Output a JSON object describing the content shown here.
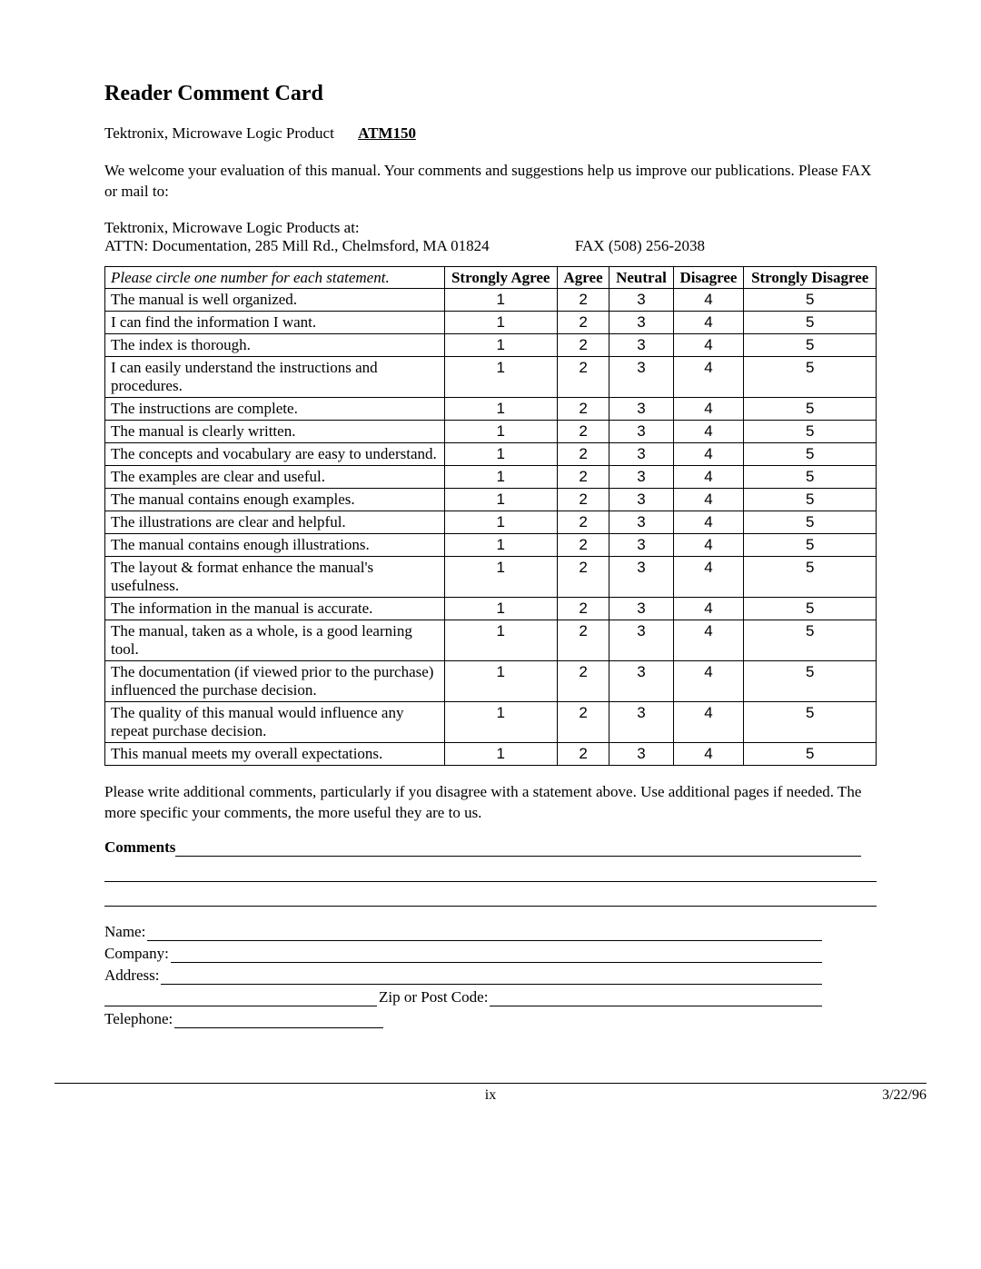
{
  "title": "Reader Comment Card",
  "company_product_line": "Tektronix, Microwave Logic Product",
  "product_code": "ATM150",
  "intro": "We welcome your evaluation of this manual. Your comments and suggestions help us improve our publications. Please FAX or mail to:",
  "address_line1": "Tektronix, Microwave Logic Products at:",
  "address_line2": "ATTN: Documentation, 285 Mill Rd., Chelmsford, MA 01824",
  "fax": "FAX (508) 256-2038",
  "table": {
    "header_instruction": "Please circle one number for each statement.",
    "columns": [
      "Strongly Agree",
      "Agree",
      "Neutral",
      "Disagree",
      "Strongly Disagree"
    ],
    "rating_values": [
      "1",
      "2",
      "3",
      "4",
      "5"
    ],
    "rows": [
      "The manual is well organized.",
      "I can find the information I want.",
      "The index is thorough.",
      "I can easily understand the instructions and procedures.",
      "The instructions are complete.",
      "The manual is clearly written.",
      "The concepts and vocabulary are easy to understand.",
      "The examples are clear and useful.",
      "The manual contains enough examples.",
      "The illustrations are clear and helpful.",
      "The manual contains enough illustrations.",
      "The layout & format enhance the manual's usefulness.",
      "The information in the manual is accurate.",
      "The manual, taken as a whole, is a good learning tool.",
      "The documentation (if viewed prior to the purchase) influenced the purchase decision.",
      "The quality of this manual would influence any repeat purchase decision.",
      "This manual meets my overall expectations."
    ]
  },
  "after_table": "Please write additional comments, particularly if you disagree with a statement above. Use additional pages if needed. The more specific your comments, the more useful they are to us.",
  "comments_label": "Comments",
  "fields": {
    "name": "Name:",
    "company": "Company:",
    "address": "Address:",
    "zip": "Zip or Post Code:",
    "telephone": "Telephone:"
  },
  "footer": {
    "page": "ix",
    "date": "3/22/96"
  },
  "colors": {
    "text": "#000000",
    "background": "#ffffff",
    "border": "#000000"
  }
}
